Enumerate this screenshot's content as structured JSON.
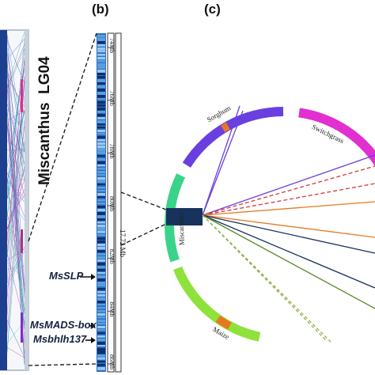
{
  "panels": {
    "b": "(b)",
    "c": "(c)"
  },
  "linkage_group": {
    "species": "Miscanthus",
    "lg": "LG04"
  },
  "genes": {
    "slp": "MsSLP",
    "mads": "MsMADS-box",
    "bhlh": "Msbhlh137"
  },
  "scale": {
    "ticks": [
      "74Mb",
      "76Mb",
      "78Mb",
      "80Mb",
      "82Mb",
      "84Mb",
      "86Mb"
    ],
    "span": "17.72 Mb"
  },
  "circos": {
    "segments": [
      "Sorghum",
      "Switchgrass",
      "Miscanthus",
      "Maize"
    ],
    "colors": {
      "miscanthus": "#3ad38a",
      "sorghum": "#6a3fe0",
      "switchgrass": "#e12fd0",
      "maize": "#8fe23c",
      "block": "#17325c",
      "accent": "#e8781f"
    }
  }
}
